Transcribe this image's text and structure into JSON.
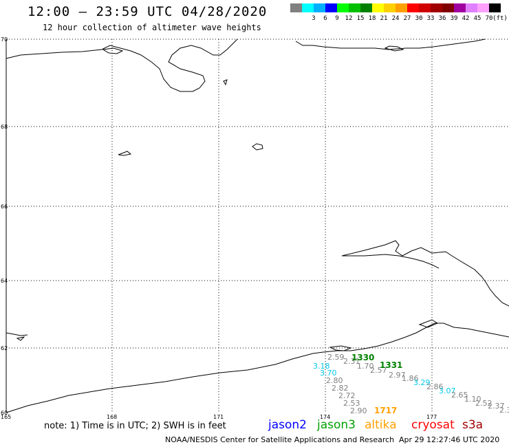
{
  "header": {
    "title": "12:00 – 23:59 UTC 04/28/2020",
    "subtitle": "12 hour collection of altimeter wave heights"
  },
  "scale": {
    "unit": "(ft)",
    "entries": [
      {
        "label": "",
        "color": "#808080"
      },
      {
        "label": "3",
        "color": "#00ffff"
      },
      {
        "label": "6",
        "color": "#00b0ff"
      },
      {
        "label": "9",
        "color": "#0000ff"
      },
      {
        "label": "12",
        "color": "#00ff00"
      },
      {
        "label": "15",
        "color": "#00c000"
      },
      {
        "label": "18",
        "color": "#008000"
      },
      {
        "label": "21",
        "color": "#ffff00"
      },
      {
        "label": "24",
        "color": "#ffd000"
      },
      {
        "label": "27",
        "color": "#ffa000"
      },
      {
        "label": "30",
        "color": "#ff0000"
      },
      {
        "label": "33",
        "color": "#d00000"
      },
      {
        "label": "36",
        "color": "#a00000"
      },
      {
        "label": "39",
        "color": "#800000"
      },
      {
        "label": "42",
        "color": "#a000a0"
      },
      {
        "label": "45",
        "color": "#e080ff"
      },
      {
        "label": "70",
        "color": "#ffa0ff"
      },
      {
        "label": "",
        "color": "#000000"
      }
    ]
  },
  "axes": {
    "lat_labels": [
      "70",
      "68",
      "66",
      "64",
      "62",
      "60"
    ],
    "lon_labels": [
      "165",
      "168",
      "171",
      "174",
      "177"
    ]
  },
  "observations": [
    {
      "text": "2.59",
      "color": "#808080"
    },
    {
      "text": "2.31",
      "color": "#808080"
    },
    {
      "text": "1330",
      "color": "#008000",
      "bold": true
    },
    {
      "text": "1.70",
      "color": "#808080"
    },
    {
      "text": "3.18",
      "color": "#00c8e8"
    },
    {
      "text": "2.57",
      "color": "#808080"
    },
    {
      "text": "1331",
      "color": "#008000",
      "bold": true
    },
    {
      "text": "3.70",
      "color": "#00c8e8"
    },
    {
      "text": "2.97",
      "color": "#808080"
    },
    {
      "text": "1.86",
      "color": "#808080"
    },
    {
      "text": "2.80",
      "color": "#808080"
    },
    {
      "text": "3.29",
      "color": "#00c8e8"
    },
    {
      "text": "2.86",
      "color": "#808080"
    },
    {
      "text": "2.82",
      "color": "#808080"
    },
    {
      "text": "3.07",
      "color": "#00c8e8"
    },
    {
      "text": "2.72",
      "color": "#808080"
    },
    {
      "text": "2.65",
      "color": "#808080"
    },
    {
      "text": "1.10",
      "color": "#808080"
    },
    {
      "text": "2.53",
      "color": "#808080"
    },
    {
      "text": "2.52",
      "color": "#808080"
    },
    {
      "text": "2.37",
      "color": "#808080"
    },
    {
      "text": "2.90",
      "color": "#808080"
    },
    {
      "text": "1717",
      "color": "#ffa000",
      "bold": true
    },
    {
      "text": "2.3",
      "color": "#808080"
    }
  ],
  "footer": {
    "note": "note: 1) Time is in UTC; 2) SWH is in feet",
    "satellites": [
      {
        "name": "jason2",
        "color": "#0000ff"
      },
      {
        "name": "jason3",
        "color": "#00a000"
      },
      {
        "name": "altika",
        "color": "#ffa000"
      },
      {
        "name": "cryosat",
        "color": "#ff0000"
      },
      {
        "name": "s3a",
        "color": "#a00000"
      }
    ],
    "credit": "NOAA/NESDIS Center for Satellite Applications and Research",
    "timestamp": "Apr 29 12:27:46 UTC 2020"
  }
}
